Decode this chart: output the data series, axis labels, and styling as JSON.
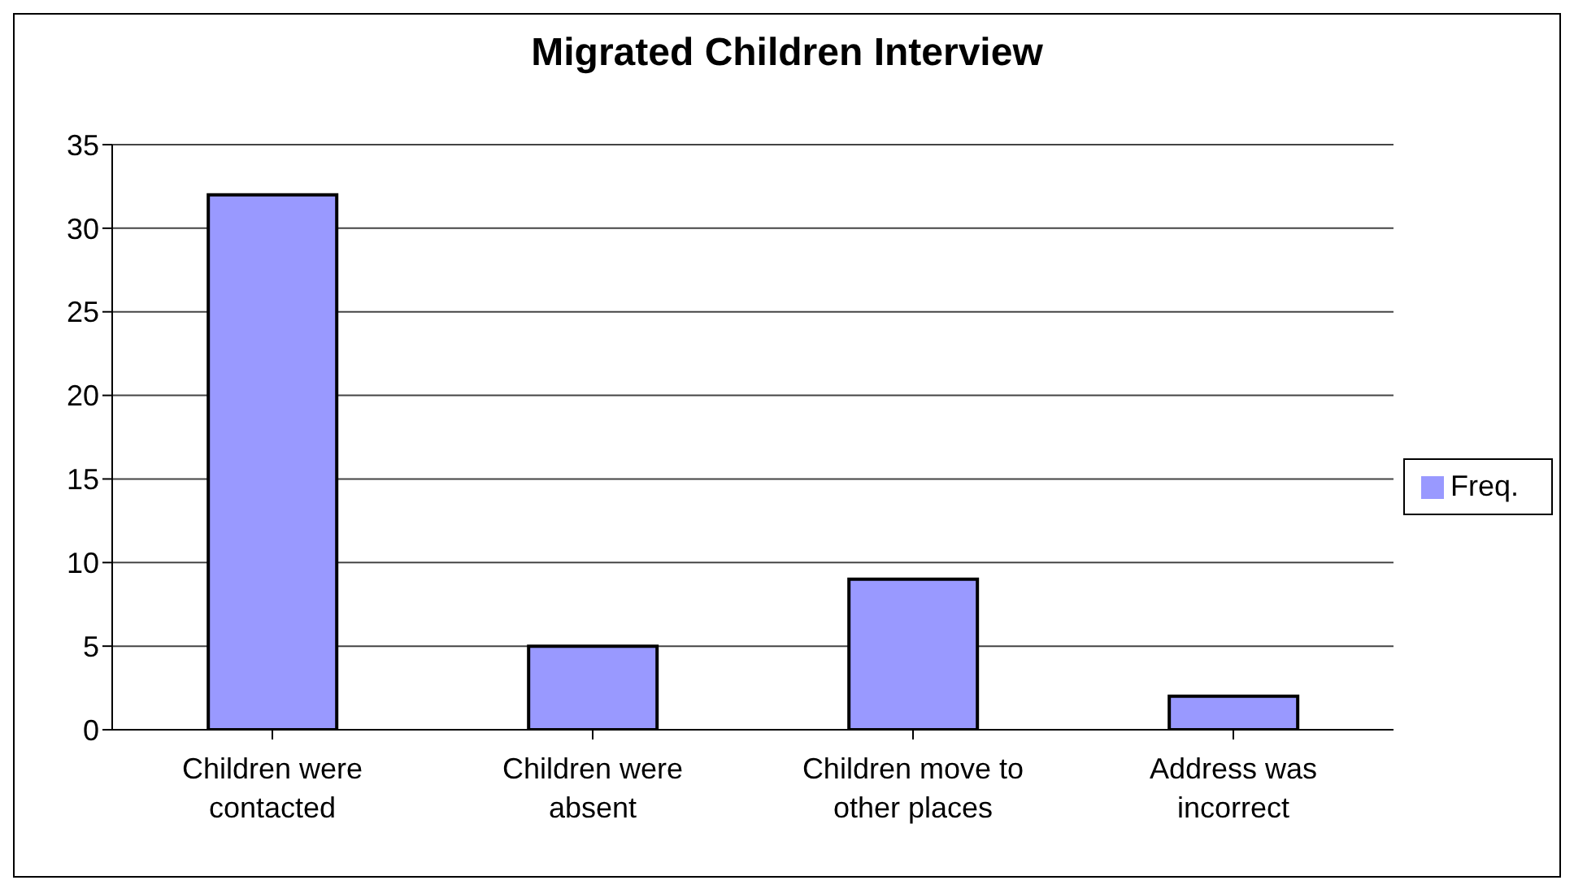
{
  "chart_data": {
    "type": "bar",
    "title": "Migrated Children Interview",
    "categories": [
      "Children were contacted",
      "Children were absent",
      "Children move to other places",
      "Address was incorrect"
    ],
    "series": [
      {
        "name": "Freq.",
        "color": "#9999ff",
        "values": [
          32,
          5,
          9,
          2
        ]
      }
    ],
    "ylim": [
      0,
      35
    ],
    "yticks": [
      0,
      5,
      10,
      15,
      20,
      25,
      30,
      35
    ],
    "grid": "y",
    "legend": "right"
  }
}
